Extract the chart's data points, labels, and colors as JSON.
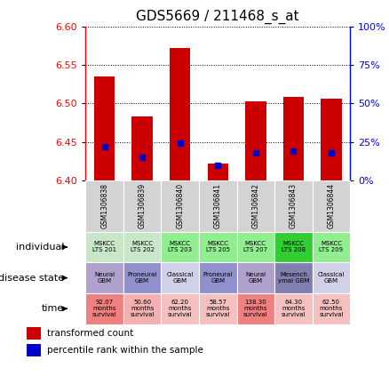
{
  "title": "GDS5669 / 211468_s_at",
  "samples": [
    "GSM1306838",
    "GSM1306839",
    "GSM1306840",
    "GSM1306841",
    "GSM1306842",
    "GSM1306843",
    "GSM1306844"
  ],
  "transformed_count": [
    6.535,
    6.483,
    6.572,
    6.422,
    6.503,
    6.508,
    6.506
  ],
  "percentile_rank": [
    22,
    15,
    24,
    10,
    18,
    19,
    18
  ],
  "ymin": 6.4,
  "ymax": 6.6,
  "yticks": [
    6.4,
    6.45,
    6.5,
    6.55,
    6.6
  ],
  "right_yticks": [
    0,
    25,
    50,
    75,
    100
  ],
  "individual": [
    "MSKCC\nLTS 201",
    "MSKCC\nLTS 202",
    "MSKCC\nLTS 203",
    "MSKCC\nLTS 205",
    "MSKCC\nLTS 207",
    "MSKCC\nLTS 208",
    "MSKCC\nLTS 209"
  ],
  "individual_colors": [
    "#c8e6c8",
    "#c8e6c8",
    "#90ee90",
    "#90ee90",
    "#90ee90",
    "#32cd32",
    "#90ee90"
  ],
  "disease_state": [
    "Neural\nGBM",
    "Proneural\nGBM",
    "Classical\nGBM",
    "Proneural\nGBM",
    "Neural\nGBM",
    "Mesench\nymal GBM",
    "Classical\nGBM"
  ],
  "disease_colors": [
    "#b0a0cc",
    "#9090cc",
    "#d0d0e8",
    "#9090cc",
    "#b0a0cc",
    "#8080b0",
    "#d0d0e8"
  ],
  "time": [
    "92.07\nmonths\nsurvival",
    "50.60\nmonths\nsurvival",
    "62.20\nmonths\nsurvival",
    "58.57\nmonths\nsurvival",
    "138.30\nmonths\nsurvival",
    "64.30\nmonths\nsurvival",
    "62.50\nmonths\nsurvival"
  ],
  "time_colors": [
    "#f08080",
    "#f4b0b0",
    "#f4c0c0",
    "#f4c0c0",
    "#f08080",
    "#f4c0c0",
    "#f4c0c0"
  ],
  "bar_color": "#cc0000",
  "dot_color": "#0000cc",
  "sample_label_bg": "#d3d3d3",
  "background_color": "#ffffff"
}
